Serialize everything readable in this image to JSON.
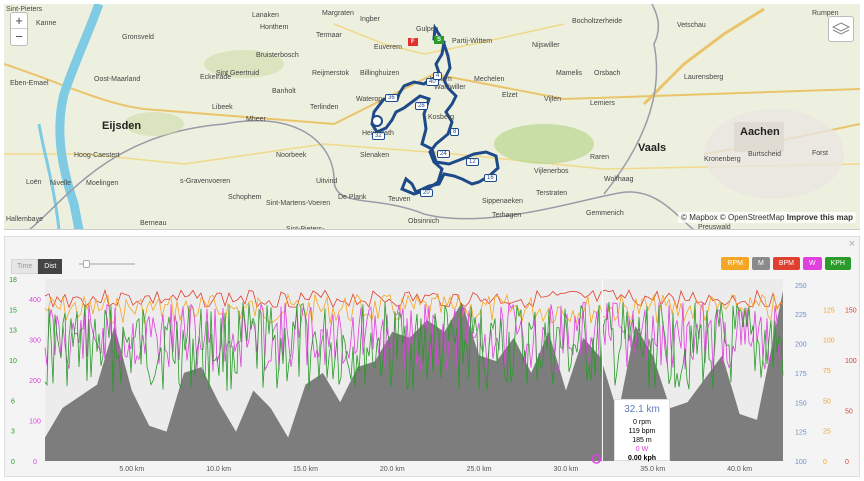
{
  "map": {
    "zoom_in": "+",
    "zoom_out": "−",
    "attribution": "© Mapbox © OpenStreetMap",
    "improve": "Improve this map",
    "places": [
      {
        "name": "Sint-Pieters",
        "big": false
      },
      {
        "name": "Kanne",
        "big": false
      },
      {
        "name": "Gronsveld",
        "big": false
      },
      {
        "name": "Honthem",
        "big": false
      },
      {
        "name": "Margraten",
        "big": false
      },
      {
        "name": "Ingber",
        "big": false
      },
      {
        "name": "Gulpen",
        "big": false
      },
      {
        "name": "Partij-Wittem",
        "big": false
      },
      {
        "name": "Bocholtzerheide",
        "big": false
      },
      {
        "name": "Vetschau",
        "big": false
      },
      {
        "name": "Eben-Emael",
        "big": false
      },
      {
        "name": "Oost-Maarland",
        "big": false
      },
      {
        "name": "Eckelrade",
        "big": false
      },
      {
        "name": "Bruisterbosch",
        "big": false
      },
      {
        "name": "Termaar",
        "big": false
      },
      {
        "name": "Euverem",
        "big": false
      },
      {
        "name": "Nijswiller",
        "big": false
      },
      {
        "name": "Reijmerstok",
        "big": false
      },
      {
        "name": "Sint Geertruid",
        "big": false
      },
      {
        "name": "Billinghuizen",
        "big": false
      },
      {
        "name": "Mechelen",
        "big": false
      },
      {
        "name": "Mamelis",
        "big": false
      },
      {
        "name": "Orsbach",
        "big": false
      },
      {
        "name": "Laurensberg",
        "big": false
      },
      {
        "name": "Eijsden",
        "big": true
      },
      {
        "name": "Mheer",
        "big": false
      },
      {
        "name": "Banholt",
        "big": false
      },
      {
        "name": "Libeek",
        "big": false
      },
      {
        "name": "Terlinden",
        "big": false
      },
      {
        "name": "Wahlwiller",
        "big": false
      },
      {
        "name": "Elzet",
        "big": false
      },
      {
        "name": "Vijlen",
        "big": false
      },
      {
        "name": "Lemiers",
        "big": false
      },
      {
        "name": "Aachen",
        "big": true
      },
      {
        "name": "Hoog-Caestert",
        "big": false
      },
      {
        "name": "Heijenrath",
        "big": false
      },
      {
        "name": "Kosberg",
        "big": false
      },
      {
        "name": "Noorbeek",
        "big": false
      },
      {
        "name": "Slenaken",
        "big": false
      },
      {
        "name": "Vaals",
        "big": true
      },
      {
        "name": "Burtscheid",
        "big": false
      },
      {
        "name": "Moelingen",
        "big": false
      },
      {
        "name": "s-Gravenvoeren",
        "big": false
      },
      {
        "name": "Uitvind",
        "big": false
      },
      {
        "name": "Vijlenerbos",
        "big": false
      },
      {
        "name": "Raren",
        "big": false
      },
      {
        "name": "Kronenberg",
        "big": false
      },
      {
        "name": "Forst",
        "big": false
      },
      {
        "name": "Schophem",
        "big": false
      },
      {
        "name": "De Plank",
        "big": false
      },
      {
        "name": "Teuven",
        "big": false
      },
      {
        "name": "Sippenaeken",
        "big": false
      },
      {
        "name": "Terstraten",
        "big": false
      },
      {
        "name": "Wolfhaag",
        "big": false
      },
      {
        "name": "Sint-Martens-Voeren",
        "big": false
      },
      {
        "name": "Berneau",
        "big": false
      },
      {
        "name": "Obsinnich",
        "big": false
      },
      {
        "name": "Terhagen",
        "big": false
      },
      {
        "name": "Gemmenich",
        "big": false
      },
      {
        "name": "Hallembaye",
        "big": false
      },
      {
        "name": "Sint-Pieters-",
        "big": false
      },
      {
        "name": "Wittem",
        "big": false
      },
      {
        "name": "Lanaken",
        "big": false
      },
      {
        "name": "Rumpen",
        "big": false
      },
      {
        "name": "Preuswald",
        "big": false
      },
      {
        "name": "Nivelle",
        "big": false
      },
      {
        "name": "Loën",
        "big": false
      },
      {
        "name": "Waterop",
        "big": false
      }
    ],
    "markers": [
      "36",
      "28",
      "40",
      "4",
      "8",
      "12",
      "16",
      "20",
      "24",
      "32"
    ],
    "flags": [
      "F",
      "S"
    ],
    "roads": [
      "N278",
      "N598",
      "N648",
      "N671",
      "N619",
      "E25",
      "57"
    ]
  },
  "panel": {
    "close": "×",
    "toggle": {
      "time": "Time",
      "dist": "Dist"
    },
    "buttons": [
      {
        "label": "RPM",
        "color": "#f5a623"
      },
      {
        "label": "M",
        "color": "#8a8a8a"
      },
      {
        "label": "BPM",
        "color": "#e0402f"
      },
      {
        "label": "W",
        "color": "#e040e0"
      },
      {
        "label": "KPH",
        "color": "#2a9a2a"
      }
    ],
    "tooltip": {
      "dist": "32.1 km",
      "rpm": "0 rpm",
      "bpm": "119 bpm",
      "alt": "185 m",
      "power": "0 W",
      "speed": "0.00 kph"
    }
  },
  "chart_data": {
    "type": "area",
    "x_ticks": [
      "5.00 km",
      "10.0 km",
      "15.0 km",
      "20.0 km",
      "25.0 km",
      "30.0 km",
      "35.0 km",
      "40.0 km"
    ],
    "x_tick_values": [
      5,
      10,
      15,
      20,
      25,
      30,
      35,
      40
    ],
    "xlim": [
      0,
      42.5
    ],
    "axes": {
      "kph": {
        "ticks": [
          0,
          3,
          6,
          10,
          13,
          15,
          18
        ],
        "ylim": [
          0,
          18
        ],
        "color": "#2a9a2a"
      },
      "watts": {
        "ticks": [
          0,
          100,
          200,
          300,
          400
        ],
        "ylim": [
          0,
          450
        ],
        "color": "#e040e0"
      },
      "meters": {
        "ticks": [
          100,
          125,
          150,
          175,
          200,
          225,
          250
        ],
        "ylim": [
          100,
          255
        ],
        "color": "#6d8fc7"
      },
      "rpm": {
        "ticks": [
          0,
          25,
          50,
          75,
          100,
          125
        ],
        "ylim": [
          0,
          150
        ],
        "color": "#f5a623"
      },
      "bpm": {
        "ticks": [
          0,
          50,
          100,
          150
        ],
        "ylim": [
          0,
          180
        ],
        "color": "#e0402f"
      }
    },
    "altitude": {
      "x": [
        0,
        1,
        2,
        3,
        4,
        5,
        6,
        7,
        8,
        9,
        10,
        11,
        12,
        13,
        14,
        15,
        16,
        17,
        18,
        19,
        20,
        21,
        22,
        23,
        24,
        25,
        26,
        27,
        28,
        29,
        30,
        31,
        32,
        33,
        34,
        35,
        36,
        37,
        38,
        39,
        40,
        41,
        42.5
      ],
      "y": [
        120,
        145,
        155,
        165,
        215,
        160,
        130,
        125,
        175,
        180,
        150,
        125,
        160,
        145,
        120,
        165,
        175,
        150,
        180,
        185,
        210,
        205,
        220,
        210,
        235,
        190,
        185,
        205,
        175,
        210,
        160,
        205,
        188,
        140,
        215,
        190,
        145,
        150,
        170,
        190,
        140,
        135,
        245
      ]
    },
    "series_note": ""
  }
}
